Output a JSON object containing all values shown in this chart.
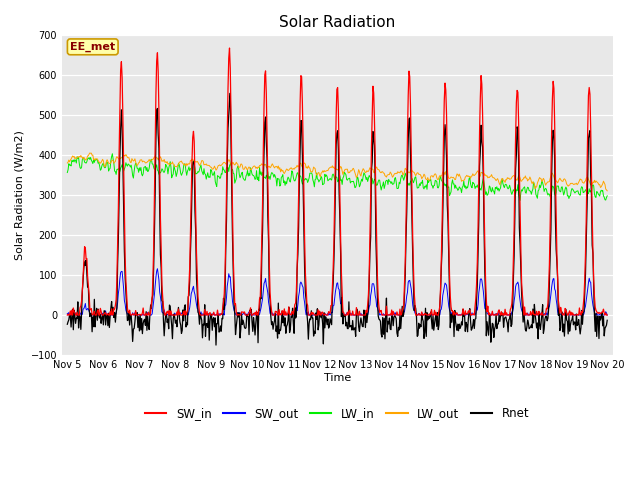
{
  "title": "Solar Radiation",
  "ylabel": "Solar Radiation (W/m2)",
  "xlabel": "Time",
  "ylim": [
    -100,
    700
  ],
  "yticks": [
    -100,
    0,
    100,
    200,
    300,
    400,
    500,
    600,
    700
  ],
  "colors": {
    "SW_in": "#ff0000",
    "SW_out": "#0000ff",
    "LW_in": "#00ee00",
    "LW_out": "#ffa500",
    "Rnet": "#000000"
  },
  "plot_bg": "#e8e8e8",
  "fig_bg": "#ffffff",
  "annotation_text": "EE_met",
  "annotation_bg": "#ffffaa",
  "annotation_border": "#cc9900",
  "annotation_color": "#880000"
}
